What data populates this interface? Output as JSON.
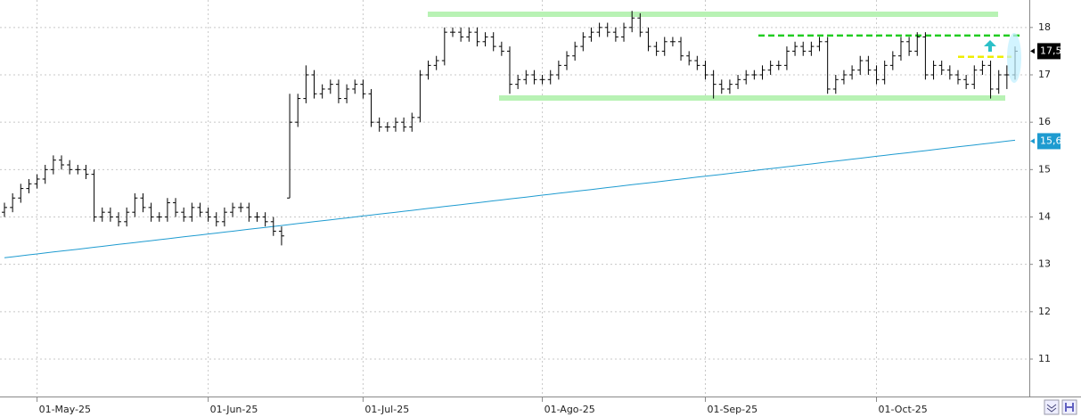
{
  "chart_data": {
    "type": "ohlc",
    "categories": [
      null,
      null,
      null,
      null,
      "01-May-25",
      null,
      null,
      null,
      null,
      null,
      null,
      null,
      null,
      null,
      null,
      null,
      null,
      null,
      null,
      null,
      null,
      null,
      null,
      null,
      null,
      "01-Jun-25",
      null,
      null,
      null,
      null,
      null,
      null,
      null,
      null,
      null,
      null,
      null,
      null,
      null,
      null,
      null,
      null,
      null,
      null,
      "01-Jul-25",
      null,
      null,
      null,
      null,
      null,
      null,
      null,
      null,
      null,
      null,
      null,
      null,
      null,
      null,
      null,
      null,
      null,
      null,
      null,
      null,
      null,
      "01-Ago-25",
      null,
      null,
      null,
      null,
      null,
      null,
      null,
      null,
      null,
      null,
      null,
      null,
      null,
      null,
      null,
      null,
      null,
      null,
      null,
      "01-Sep-25",
      null,
      null,
      null,
      null,
      null,
      null,
      null,
      null,
      null,
      null,
      null,
      null,
      null,
      null,
      null,
      null,
      null,
      null,
      null,
      null,
      "01-Oct-25",
      null,
      null,
      null,
      null,
      null,
      null,
      null,
      null,
      null,
      null,
      null,
      null,
      null,
      null,
      null,
      null,
      null
    ],
    "ohlc": {
      "color": "#000000",
      "open": [
        14.1,
        14.2,
        14.4,
        14.6,
        14.7,
        14.8,
        15.0,
        15.2,
        15.1,
        15.0,
        15.0,
        14.9,
        14.0,
        14.1,
        14.0,
        13.9,
        14.1,
        14.4,
        14.2,
        14.0,
        14.0,
        14.3,
        14.1,
        14.0,
        14.2,
        14.1,
        14.0,
        13.9,
        14.1,
        14.2,
        14.2,
        14.0,
        14.0,
        13.9,
        13.7,
        14.4,
        16.0,
        16.5,
        17.0,
        16.6,
        16.7,
        16.8,
        16.5,
        16.7,
        16.8,
        16.6,
        16.0,
        15.9,
        15.9,
        16.0,
        15.9,
        16.1,
        17.0,
        17.2,
        17.3,
        17.9,
        17.9,
        17.8,
        17.9,
        17.7,
        17.8,
        17.6,
        17.5,
        16.8,
        16.9,
        17.0,
        16.9,
        16.9,
        17.0,
        17.2,
        17.4,
        17.6,
        17.8,
        17.9,
        18.0,
        17.9,
        17.8,
        18.0,
        18.2,
        17.9,
        17.6,
        17.5,
        17.7,
        17.7,
        17.4,
        17.3,
        17.2,
        17.0,
        16.8,
        16.7,
        16.8,
        16.9,
        17.0,
        17.0,
        17.1,
        17.2,
        17.2,
        17.5,
        17.6,
        17.5,
        17.6,
        17.7,
        16.7,
        16.9,
        17.0,
        17.1,
        17.3,
        17.1,
        16.9,
        17.2,
        17.4,
        17.7,
        17.5,
        17.8,
        17.0,
        17.2,
        17.1,
        17.0,
        16.9,
        16.8,
        17.1,
        17.2,
        16.7,
        17.0,
        17.0
      ],
      "high": [
        14.3,
        14.5,
        14.7,
        14.8,
        14.9,
        15.1,
        15.3,
        15.3,
        15.2,
        15.1,
        15.1,
        15.0,
        14.2,
        14.2,
        14.1,
        14.2,
        14.5,
        14.5,
        14.3,
        14.1,
        14.4,
        14.4,
        14.2,
        14.3,
        14.3,
        14.2,
        14.1,
        14.2,
        14.3,
        14.3,
        14.3,
        14.1,
        14.1,
        14.0,
        13.8,
        16.6,
        16.6,
        17.2,
        17.1,
        16.8,
        16.9,
        16.9,
        16.8,
        16.9,
        16.9,
        16.7,
        16.1,
        16.0,
        16.1,
        16.1,
        16.2,
        17.1,
        17.3,
        17.4,
        18.0,
        18.0,
        18.0,
        18.0,
        18.0,
        17.9,
        17.9,
        17.7,
        17.6,
        17.0,
        17.1,
        17.1,
        17.0,
        17.1,
        17.3,
        17.5,
        17.7,
        17.9,
        18.0,
        18.1,
        18.1,
        18.0,
        18.1,
        18.35,
        18.3,
        18.0,
        17.7,
        17.8,
        17.8,
        17.8,
        17.5,
        17.4,
        17.3,
        17.1,
        16.9,
        16.9,
        17.0,
        17.1,
        17.1,
        17.2,
        17.3,
        17.3,
        17.6,
        17.7,
        17.7,
        17.7,
        17.8,
        17.8,
        17.0,
        17.1,
        17.2,
        17.4,
        17.4,
        17.2,
        17.3,
        17.5,
        17.8,
        17.8,
        17.9,
        17.9,
        17.3,
        17.3,
        17.2,
        17.1,
        17.0,
        17.2,
        17.3,
        17.3,
        17.1,
        17.2,
        17.6
      ],
      "low": [
        14.0,
        14.1,
        14.3,
        14.5,
        14.6,
        14.7,
        14.9,
        15.0,
        14.9,
        14.9,
        14.8,
        13.9,
        13.9,
        13.9,
        13.8,
        13.8,
        14.0,
        14.1,
        13.9,
        13.9,
        13.9,
        14.0,
        13.9,
        13.9,
        14.0,
        13.9,
        13.8,
        13.8,
        14.0,
        14.1,
        13.9,
        13.9,
        13.8,
        13.6,
        13.4,
        14.4,
        15.9,
        16.4,
        16.5,
        16.5,
        16.6,
        16.4,
        16.4,
        16.6,
        16.5,
        15.9,
        15.8,
        15.8,
        15.8,
        15.8,
        15.8,
        16.0,
        16.9,
        17.1,
        17.2,
        17.8,
        17.7,
        17.7,
        17.6,
        17.6,
        17.5,
        17.4,
        16.6,
        16.7,
        16.8,
        16.8,
        16.8,
        16.8,
        16.9,
        17.1,
        17.3,
        17.5,
        17.7,
        17.8,
        17.8,
        17.7,
        17.7,
        17.9,
        17.8,
        17.5,
        17.4,
        17.4,
        17.6,
        17.3,
        17.2,
        17.1,
        16.9,
        16.5,
        16.6,
        16.6,
        16.7,
        16.8,
        16.9,
        16.9,
        17.0,
        17.1,
        17.1,
        17.4,
        17.4,
        17.4,
        17.5,
        16.6,
        16.6,
        16.8,
        16.9,
        17.0,
        17.0,
        16.8,
        16.8,
        17.1,
        17.3,
        17.4,
        17.4,
        16.9,
        16.9,
        17.0,
        16.9,
        16.8,
        16.7,
        16.7,
        17.0,
        16.5,
        16.6,
        16.7,
        16.9
      ],
      "close": [
        14.2,
        14.4,
        14.6,
        14.7,
        14.8,
        15.0,
        15.2,
        15.1,
        15.0,
        15.0,
        14.9,
        14.0,
        14.1,
        14.0,
        13.9,
        14.1,
        14.4,
        14.2,
        14.0,
        14.0,
        14.3,
        14.1,
        14.0,
        14.2,
        14.1,
        14.0,
        13.9,
        14.1,
        14.2,
        14.2,
        14.0,
        14.0,
        13.9,
        13.7,
        13.6,
        16.0,
        16.5,
        17.0,
        16.6,
        16.7,
        16.8,
        16.5,
        16.7,
        16.8,
        16.6,
        16.0,
        15.9,
        15.9,
        16.0,
        15.9,
        16.1,
        17.0,
        17.2,
        17.3,
        17.9,
        17.9,
        17.8,
        17.9,
        17.7,
        17.8,
        17.6,
        17.5,
        16.8,
        16.9,
        17.0,
        16.9,
        16.9,
        17.0,
        17.2,
        17.4,
        17.6,
        17.8,
        17.9,
        18.0,
        17.9,
        17.8,
        18.0,
        18.2,
        17.9,
        17.6,
        17.5,
        17.7,
        17.7,
        17.4,
        17.3,
        17.2,
        17.0,
        16.8,
        16.7,
        16.8,
        16.9,
        17.0,
        17.0,
        17.1,
        17.2,
        17.2,
        17.5,
        17.6,
        17.5,
        17.6,
        17.7,
        16.7,
        16.9,
        17.0,
        17.1,
        17.3,
        17.1,
        16.9,
        17.2,
        17.4,
        17.7,
        17.5,
        17.8,
        17.0,
        17.2,
        17.1,
        17.0,
        16.9,
        16.8,
        17.1,
        17.2,
        16.7,
        17.0,
        17.0,
        17.5
      ]
    },
    "ma": {
      "color": "#1e9bd0",
      "values": [
        13.14,
        13.16,
        13.18,
        13.2,
        13.22,
        13.24,
        13.26,
        13.28,
        13.3,
        13.32,
        13.34,
        13.36,
        13.38,
        13.4,
        13.42,
        13.44,
        13.46,
        13.48,
        13.5,
        13.52,
        13.54,
        13.56,
        13.58,
        13.6,
        13.62,
        13.64,
        13.66,
        13.68,
        13.7,
        13.72,
        13.74,
        13.76,
        13.78,
        13.8,
        13.82,
        13.84,
        13.86,
        13.88,
        13.9,
        13.92,
        13.94,
        13.96,
        13.98,
        14.0,
        14.02,
        14.04,
        14.06,
        14.08,
        14.1,
        14.12,
        14.14,
        14.16,
        14.18,
        14.2,
        14.22,
        14.24,
        14.26,
        14.28,
        14.3,
        14.32,
        14.34,
        14.36,
        14.38,
        14.4,
        14.42,
        14.44,
        14.46,
        14.48,
        14.5,
        14.52,
        14.54,
        14.56,
        14.58,
        14.6,
        14.62,
        14.64,
        14.66,
        14.68,
        14.7,
        14.72,
        14.74,
        14.76,
        14.78,
        14.8,
        14.82,
        14.84,
        14.86,
        14.88,
        14.9,
        14.92,
        14.94,
        14.96,
        14.98,
        15.0,
        15.02,
        15.04,
        15.06,
        15.08,
        15.1,
        15.12,
        15.14,
        15.16,
        15.18,
        15.2,
        15.22,
        15.24,
        15.26,
        15.28,
        15.3,
        15.32,
        15.34,
        15.36,
        15.38,
        15.4,
        15.42,
        15.44,
        15.46,
        15.48,
        15.5,
        15.52,
        15.54,
        15.56,
        15.58,
        15.6,
        15.62
      ]
    },
    "levels": [
      {
        "value": 18.28,
        "color": "#b8f2b4",
        "style": "solid"
      },
      {
        "value": 16.51,
        "color": "#b8f2b4",
        "style": "solid"
      },
      {
        "value": 17.83,
        "color": "#22cc22",
        "style": "dashed"
      },
      {
        "value": 17.38,
        "color": "#eeee00",
        "style": "dashed"
      }
    ],
    "price_tags": [
      {
        "value": 17.5,
        "label": "17,5",
        "color": "#000000"
      },
      {
        "value": 15.6,
        "label": "15,6",
        "color": "#1e9bd0"
      }
    ],
    "ylim": [
      10.21,
      18.58
    ],
    "yticks": [
      11,
      12,
      13,
      14,
      15,
      16,
      17,
      18
    ],
    "grid": true
  }
}
